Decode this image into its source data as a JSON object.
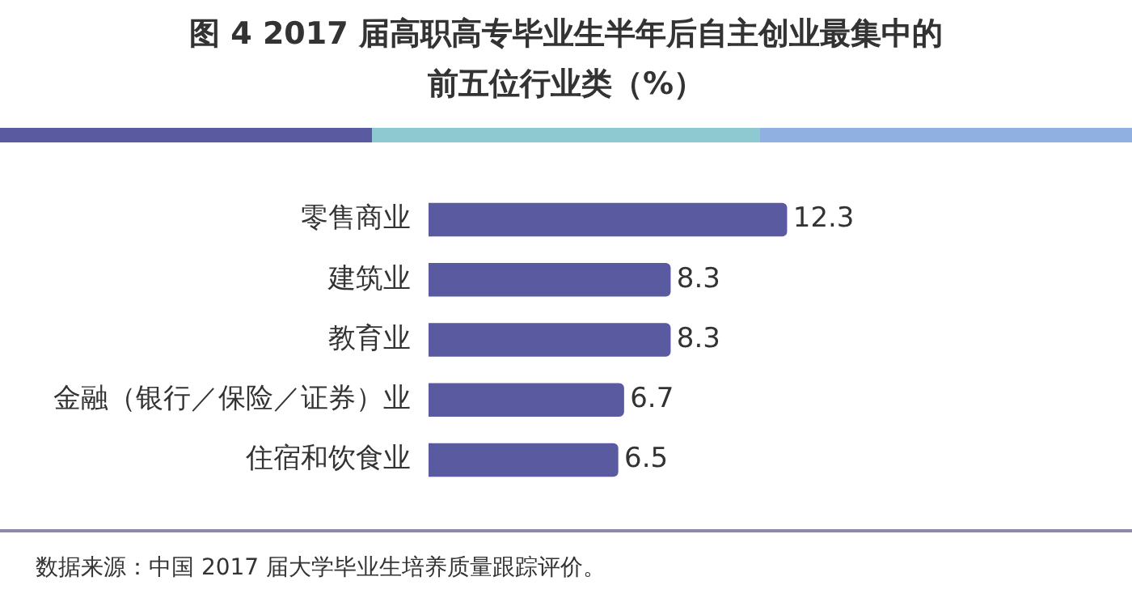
{
  "chart_data": {
    "type": "bar",
    "orientation": "horizontal",
    "title": "图 4  2017 届高职高专毕业生半年后自主创业最集中的前五位行业类（%）",
    "categories": [
      "零售商业",
      "建筑业",
      "教育业",
      "金融（银行／保险／证券）业",
      "住宿和饮食业"
    ],
    "values": [
      12.3,
      8.3,
      8.3,
      6.7,
      6.5
    ],
    "color": "#5a5aa0",
    "data_labels": true,
    "annotations": [
      "数据来源：中国 2017 届大学毕业生培养质量跟踪评价。"
    ]
  }
}
